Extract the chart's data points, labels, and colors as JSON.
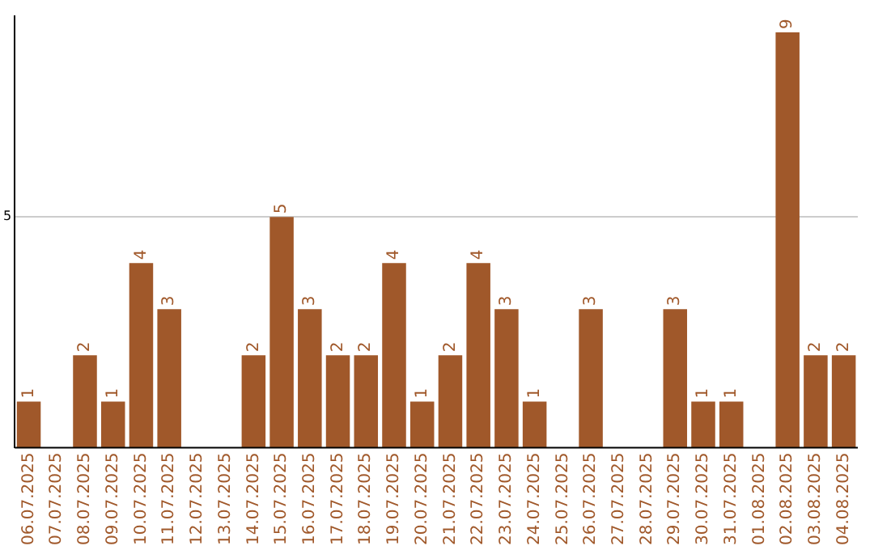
{
  "chart_data": {
    "type": "bar",
    "categories": [
      "06.07.2025",
      "07.07.2025",
      "08.07.2025",
      "09.07.2025",
      "10.07.2025",
      "11.07.2025",
      "12.07.2025",
      "13.07.2025",
      "14.07.2025",
      "15.07.2025",
      "16.07.2025",
      "17.07.2025",
      "18.07.2025",
      "19.07.2025",
      "20.07.2025",
      "21.07.2025",
      "22.07.2025",
      "23.07.2025",
      "24.07.2025",
      "25.07.2025",
      "26.07.2025",
      "27.07.2025",
      "28.07.2025",
      "29.07.2025",
      "30.07.2025",
      "31.07.2025",
      "01.08.2025",
      "02.08.2025",
      "03.08.2025",
      "04.08.2025"
    ],
    "values": [
      1,
      0,
      2,
      1,
      4,
      3,
      0,
      0,
      2,
      5,
      3,
      2,
      2,
      4,
      1,
      2,
      4,
      3,
      1,
      0,
      3,
      0,
      0,
      3,
      1,
      1,
      0,
      9,
      2,
      2
    ],
    "value_labels": [
      "1",
      null,
      "2",
      "1",
      "4",
      "3",
      null,
      null,
      "2",
      "5",
      "3",
      "2",
      "2",
      "4",
      "1",
      "2",
      "4",
      "3",
      "1",
      null,
      "3",
      null,
      null,
      "3",
      "1",
      "1",
      null,
      "9",
      "2",
      "2"
    ],
    "color": "#a0582a",
    "ylim": [
      0,
      9.35
    ],
    "yticks": [
      5
    ],
    "grid": "y",
    "legend": false
  }
}
